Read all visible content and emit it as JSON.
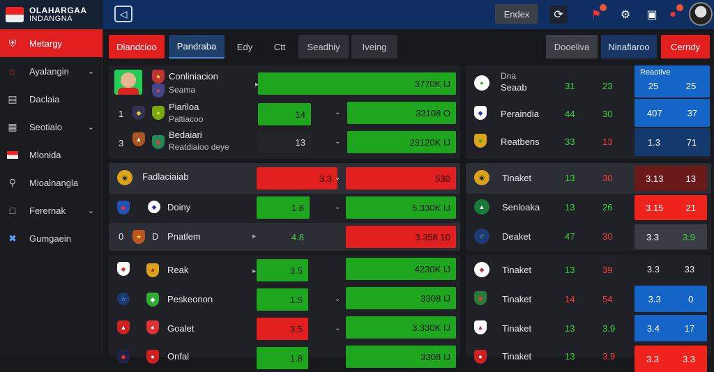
{
  "app": {
    "logo_line1": "OLAHARGAA",
    "logo_line2": "INDANGNA",
    "search_button": "Endex"
  },
  "sidebar": {
    "items": [
      {
        "label": "Metargy",
        "icon": "shield-icon",
        "chevron": false
      },
      {
        "label": "Ayalangin",
        "icon": "home-icon",
        "chevron": true
      },
      {
        "label": "Daclaia",
        "icon": "calendar-icon",
        "chevron": false
      },
      {
        "label": "Seotialo",
        "icon": "grid-icon",
        "chevron": true
      },
      {
        "label": "Mlonida",
        "icon": "flag-icon",
        "chevron": false
      },
      {
        "label": "Mioalnangla",
        "icon": "search-icon",
        "chevron": false
      },
      {
        "label": "Ferernak",
        "icon": "document-icon",
        "chevron": true
      },
      {
        "label": "Gumgaein",
        "icon": "tools-icon",
        "chevron": false
      }
    ]
  },
  "tabs": {
    "left": [
      "Dlandcioo",
      "Pandraba",
      "Edy",
      "Ctt",
      "Seadhiy",
      "Iveing"
    ],
    "right": [
      "Dooeliva",
      "Ninafiaroo",
      "Cerndy"
    ]
  },
  "groups": [
    {
      "rows": [
        {
          "num": "",
          "title": "Conliniacion",
          "sub": "Seama",
          "mid": "",
          "bar": "3770K IJ",
          "bar_color": "green"
        },
        {
          "num": "1",
          "title": "Piariloa",
          "sub": "Paltiacoo",
          "mid": "14",
          "bar": "33108 O",
          "bar_color": "green"
        },
        {
          "num": "3",
          "title": "Bedaiari",
          "sub": "Reatdiaioo deye",
          "mid": "13",
          "bar": "23120K IJ",
          "bar_color": "green"
        }
      ]
    },
    {
      "rows": [
        {
          "num": "",
          "title": "Fadlaciaiab",
          "sub": "",
          "mid": "3.3",
          "bar": "530",
          "bar_color": "red",
          "mid_color": "red"
        },
        {
          "num": "",
          "title": "Doiny",
          "sub": "",
          "mid": "1.8",
          "bar": "5.330K IJ",
          "bar_color": "green",
          "mid_color": "green"
        },
        {
          "num": "0",
          "title": "Pnatlem",
          "sub": "",
          "mid": "4.8",
          "bar": "3.358 10",
          "bar_color": "red",
          "mid_color": "dark"
        }
      ]
    },
    {
      "rows": [
        {
          "num": "",
          "title": "Reak",
          "sub": "",
          "mid": "3.5",
          "bar": "4230K IJ",
          "bar_color": "green",
          "mid_color": "green"
        },
        {
          "num": "",
          "title": "Peskeonon",
          "sub": "",
          "mid": "1.5",
          "bar": "3308 IJ",
          "bar_color": "green",
          "mid_color": "green"
        },
        {
          "num": "",
          "title": "Goalet",
          "sub": "",
          "mid": "3.5",
          "bar": "3.330K IJ",
          "bar_color": "green",
          "mid_color": "red"
        },
        {
          "num": "",
          "title": "Onfal",
          "sub": "",
          "mid": "1.8",
          "bar": "3308 IJ",
          "bar_color": "green",
          "mid_color": "green"
        }
      ]
    }
  ],
  "right_groups": [
    {
      "rows": [
        {
          "title": "Dna",
          "sub": "Seaab",
          "a": "31",
          "a_color": "g",
          "b": "23",
          "b_color": "g",
          "head": "Reaotive",
          "o1": "25",
          "o2": "25",
          "odds_color": "blue"
        },
        {
          "title": "Peraindia",
          "sub": "",
          "a": "44",
          "a_color": "g",
          "b": "30",
          "b_color": "g",
          "head": "",
          "o1": "407",
          "o2": "37",
          "odds_color": "blue"
        },
        {
          "title": "Reatbens",
          "sub": "",
          "a": "33",
          "a_color": "g",
          "b": "13",
          "b_color": "r",
          "head": "",
          "o1": "1.3",
          "o2": "71",
          "odds_color": "navy"
        }
      ]
    },
    {
      "rows": [
        {
          "title": "Tinaket",
          "sub": "",
          "a": "13",
          "a_color": "g",
          "b": "30",
          "b_color": "r",
          "head": "",
          "o1": "3.13",
          "o2": "13",
          "odds_color": "dred"
        },
        {
          "title": "Senloaka",
          "sub": "",
          "a": "13",
          "a_color": "g",
          "b": "26",
          "b_color": "g",
          "head": "",
          "o1": "3.15",
          "o2": "21",
          "odds_color": "red"
        },
        {
          "title": "Deaket",
          "sub": "",
          "a": "47",
          "a_color": "g",
          "b": "30",
          "b_color": "r",
          "head": "",
          "o1": "3.3",
          "o2": "3.9",
          "odds_color": "gray"
        }
      ]
    },
    {
      "rows": [
        {
          "title": "Tinaket",
          "sub": "",
          "a": "13",
          "a_color": "g",
          "b": "39",
          "b_color": "r",
          "head": "",
          "o1": "3.3",
          "o2": "33",
          "odds_color": "none"
        },
        {
          "title": "Tinaket",
          "sub": "",
          "a": "14",
          "a_color": "r",
          "b": "54",
          "b_color": "r",
          "head": "",
          "o1": "3.3",
          "o2": "0",
          "odds_color": "blue"
        },
        {
          "title": "Tinaket",
          "sub": "",
          "a": "13",
          "a_color": "g",
          "b": "3.9",
          "b_color": "g",
          "head": "",
          "o1": "3.4",
          "o2": "17",
          "odds_color": "blue"
        },
        {
          "title": "Tinaket",
          "sub": "",
          "a": "13",
          "a_color": "g",
          "b": "3.9",
          "b_color": "r",
          "head": "",
          "o1": "3.3",
          "o2": "3.3",
          "odds_color": "red"
        }
      ]
    }
  ]
}
